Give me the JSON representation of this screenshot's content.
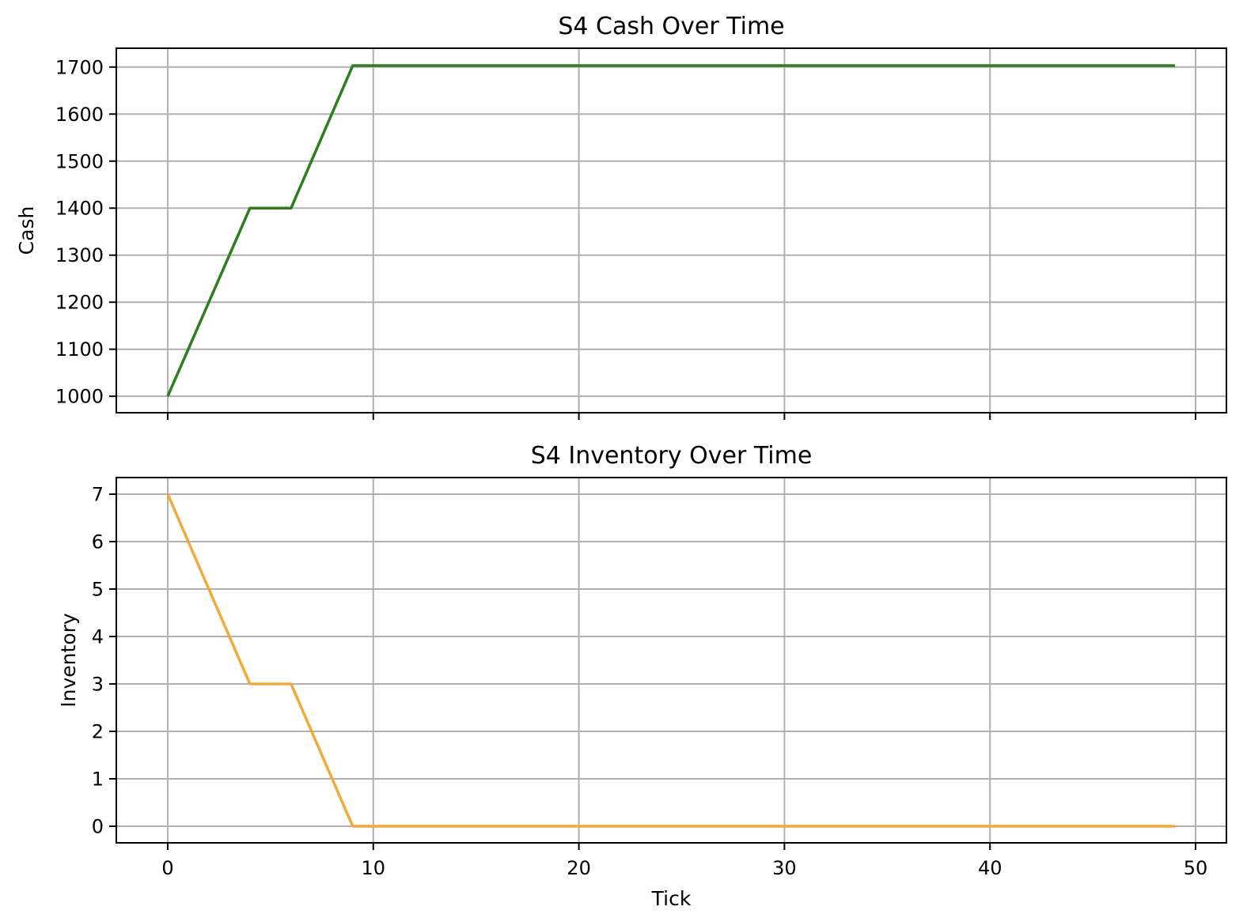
{
  "chart_data": [
    {
      "type": "line",
      "title": "S4 Cash Over Time",
      "xlabel": "",
      "ylabel": "Cash",
      "xlim": [
        -2.5,
        51.5
      ],
      "ylim": [
        965,
        1740
      ],
      "xticks": [
        0,
        10,
        20,
        30,
        40,
        50
      ],
      "show_xtick_labels": false,
      "yticks": [
        1000,
        1100,
        1200,
        1300,
        1400,
        1500,
        1600,
        1700
      ],
      "grid": true,
      "color": "#2e7d1f",
      "x": [
        0,
        4,
        6,
        9,
        49
      ],
      "y": [
        1000,
        1400,
        1400,
        1703,
        1703
      ]
    },
    {
      "type": "line",
      "title": "S4 Inventory Over Time",
      "xlabel": "Tick",
      "ylabel": "Inventory",
      "xlim": [
        -2.5,
        51.5
      ],
      "ylim": [
        -0.35,
        7.35
      ],
      "xticks": [
        0,
        10,
        20,
        30,
        40,
        50
      ],
      "show_xtick_labels": true,
      "yticks": [
        0,
        1,
        2,
        3,
        4,
        5,
        6,
        7
      ],
      "grid": true,
      "color": "#f2a93b",
      "x": [
        0,
        4,
        6,
        9,
        49
      ],
      "y": [
        7,
        3,
        3,
        0,
        0
      ]
    }
  ]
}
